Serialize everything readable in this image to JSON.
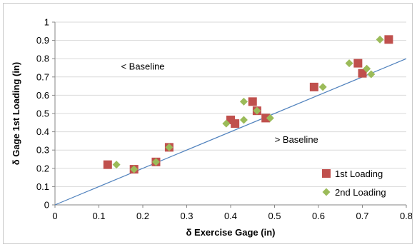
{
  "chart_data": {
    "type": "scatter",
    "xlabel": "δ Exercise Gage (in)",
    "ylabel": "δ Gage 1st Loading (in)",
    "xlim": [
      0,
      0.8
    ],
    "ylim": [
      0,
      1
    ],
    "x_ticks": [
      "0",
      "0.1",
      "0.2",
      "0.3",
      "0.4",
      "0.5",
      "0.6",
      "0.7",
      "0.8"
    ],
    "y_ticks": [
      "0",
      "0.1",
      "0.2",
      "0.3",
      "0.4",
      "0.5",
      "0.6",
      "0.7",
      "0.8",
      "0.9",
      "1"
    ],
    "grid": "horizontal",
    "legend_position": "bottom-right",
    "series": [
      {
        "name": "1st Loading",
        "marker": "square",
        "color": "#c0504d",
        "points": [
          [
            0.12,
            0.22
          ],
          [
            0.18,
            0.195
          ],
          [
            0.23,
            0.235
          ],
          [
            0.26,
            0.315
          ],
          [
            0.4,
            0.465
          ],
          [
            0.41,
            0.445
          ],
          [
            0.45,
            0.565
          ],
          [
            0.46,
            0.515
          ],
          [
            0.48,
            0.475
          ],
          [
            0.59,
            0.645
          ],
          [
            0.69,
            0.775
          ],
          [
            0.7,
            0.72
          ],
          [
            0.76,
            0.905
          ]
        ]
      },
      {
        "name": "2nd Loading",
        "marker": "diamond",
        "color": "#9bbb59",
        "points": [
          [
            0.14,
            0.22
          ],
          [
            0.18,
            0.195
          ],
          [
            0.23,
            0.235
          ],
          [
            0.26,
            0.315
          ],
          [
            0.39,
            0.445
          ],
          [
            0.43,
            0.465
          ],
          [
            0.43,
            0.565
          ],
          [
            0.46,
            0.515
          ],
          [
            0.49,
            0.475
          ],
          [
            0.61,
            0.645
          ],
          [
            0.67,
            0.775
          ],
          [
            0.71,
            0.745
          ],
          [
            0.72,
            0.715
          ],
          [
            0.74,
            0.905
          ]
        ]
      }
    ],
    "reference_line": {
      "from": [
        0,
        0
      ],
      "to": [
        0.8,
        0.8
      ],
      "color": "#4f81bd"
    },
    "annotations": [
      {
        "text": "< Baseline",
        "x": 0.2,
        "y": 0.74
      },
      {
        "text": "> Baseline",
        "x": 0.55,
        "y": 0.34
      }
    ]
  }
}
